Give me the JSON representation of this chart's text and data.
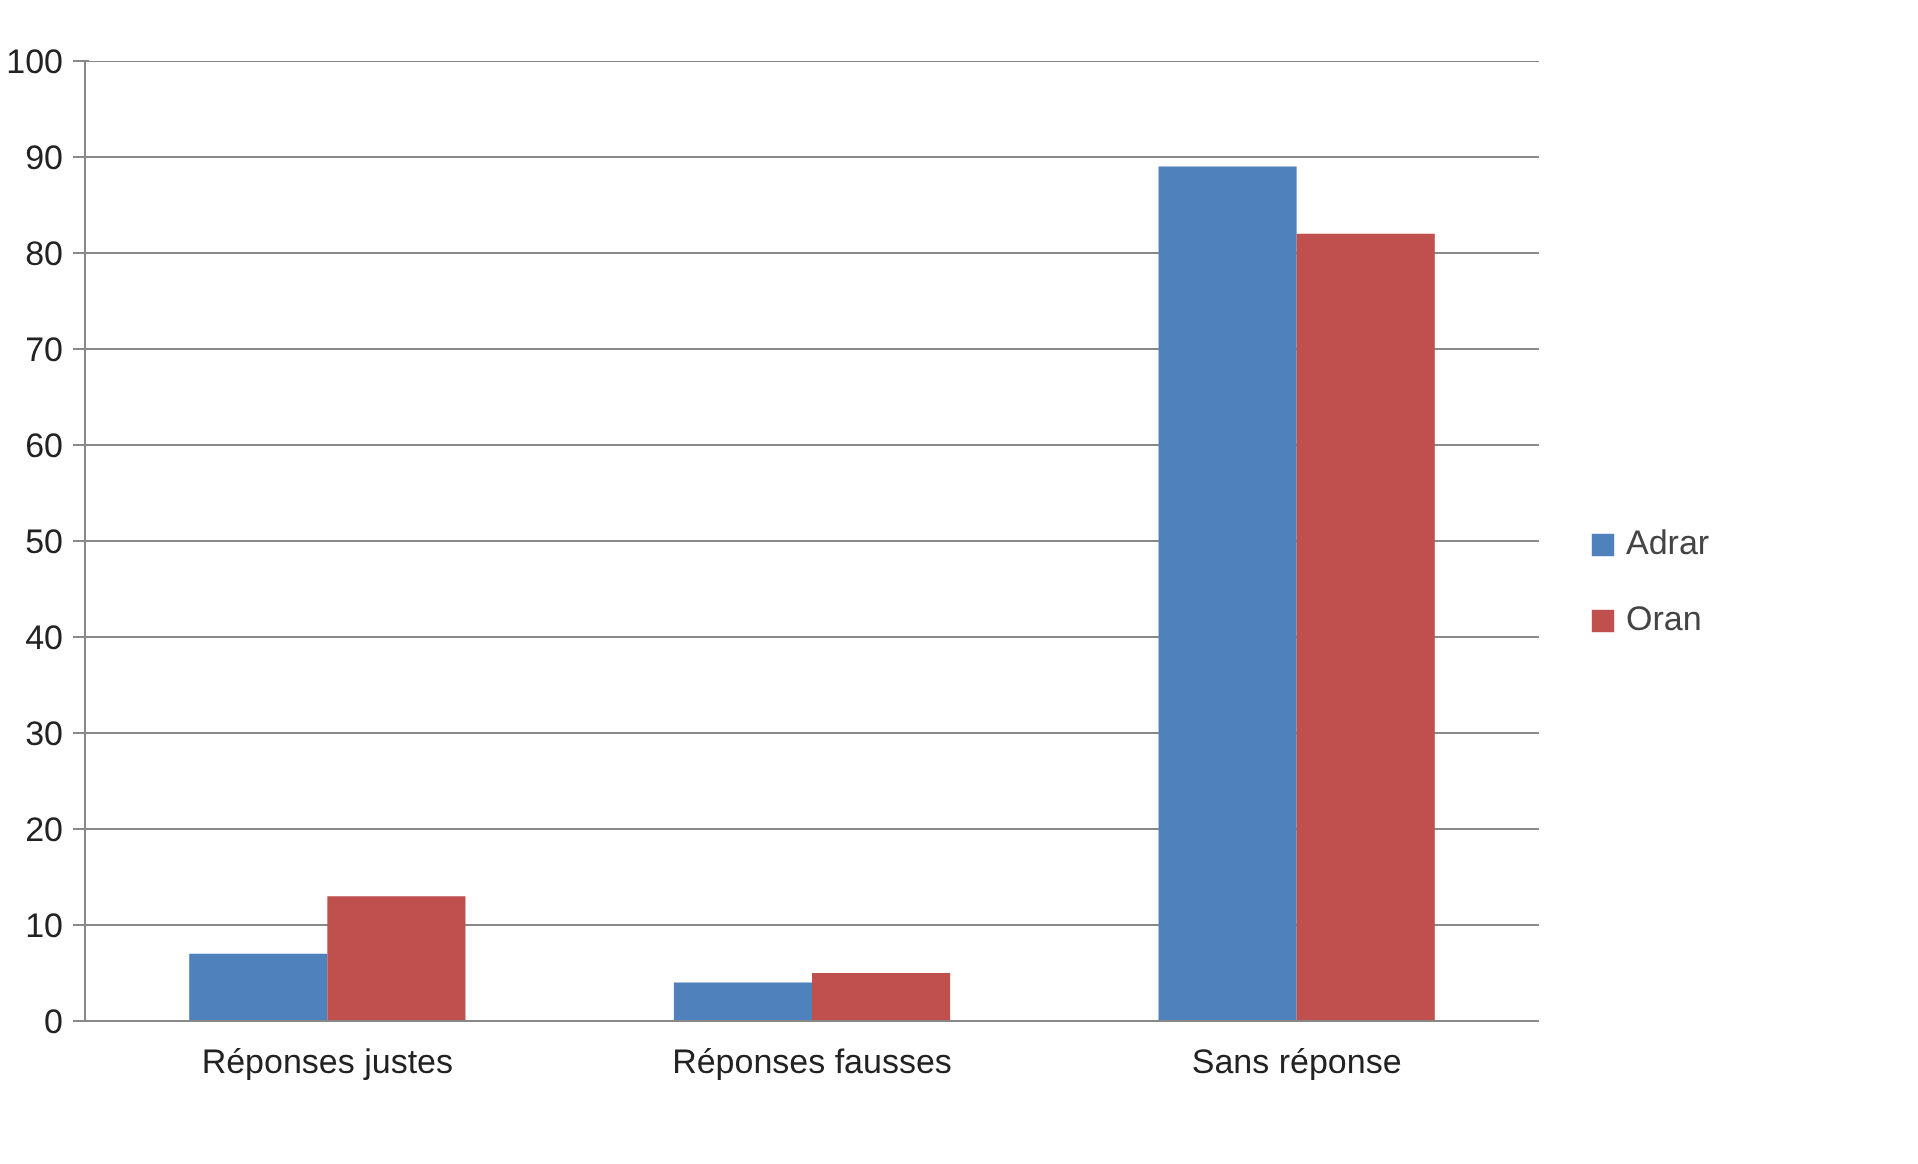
{
  "chart_data": {
    "type": "bar",
    "categories": [
      "Réponses justes",
      "Réponses fausses",
      "Sans réponse"
    ],
    "series": [
      {
        "name": "Adrar",
        "color": "#4f81bd",
        "values": [
          7,
          4,
          89
        ]
      },
      {
        "name": "Oran",
        "color": "#c0504d",
        "values": [
          13,
          5,
          82
        ]
      }
    ],
    "ylim": [
      0,
      100
    ],
    "yticks": [
      0,
      10,
      20,
      30,
      40,
      50,
      60,
      70,
      80,
      90,
      100
    ],
    "grid": "y",
    "legend": "right"
  }
}
